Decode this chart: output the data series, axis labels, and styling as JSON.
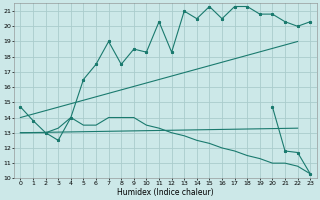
{
  "xlabel": "Humidex (Indice chaleur)",
  "bg_color": "#cce8e8",
  "grid_color": "#aacccc",
  "line_color": "#1a7a6e",
  "xlim": [
    -0.5,
    23.5
  ],
  "ylim": [
    10,
    21.5
  ],
  "xticks": [
    0,
    1,
    2,
    3,
    4,
    5,
    6,
    7,
    8,
    9,
    10,
    11,
    12,
    13,
    14,
    15,
    16,
    17,
    18,
    19,
    20,
    21,
    22,
    23
  ],
  "yticks": [
    10,
    11,
    12,
    13,
    14,
    15,
    16,
    17,
    18,
    19,
    20,
    21
  ],
  "line1_y": [
    14.7,
    13.8,
    13.0,
    12.5,
    14.0,
    16.5,
    17.5,
    19.0,
    17.5,
    18.5,
    18.3,
    20.3,
    18.3,
    21.0,
    20.5,
    21.3,
    20.5,
    21.3,
    21.3,
    20.8,
    20.8,
    20.3,
    20.0,
    20.3
  ],
  "line2_x": [
    0,
    22
  ],
  "line2_y": [
    14.0,
    19.0
  ],
  "line3_x": [
    0,
    22
  ],
  "line3_y": [
    13.0,
    13.3
  ],
  "line4_y": [
    13.0,
    13.0,
    13.0,
    13.3,
    14.0,
    13.5,
    13.5,
    14.0,
    14.0,
    14.0,
    13.5,
    13.3,
    13.0,
    12.8,
    12.5,
    12.3,
    12.0,
    11.8,
    11.5,
    11.3,
    11.0,
    11.0,
    10.8,
    10.3
  ],
  "line5_x": [
    20,
    21,
    22,
    23
  ],
  "line5_y": [
    14.7,
    11.8,
    11.7,
    10.3
  ]
}
